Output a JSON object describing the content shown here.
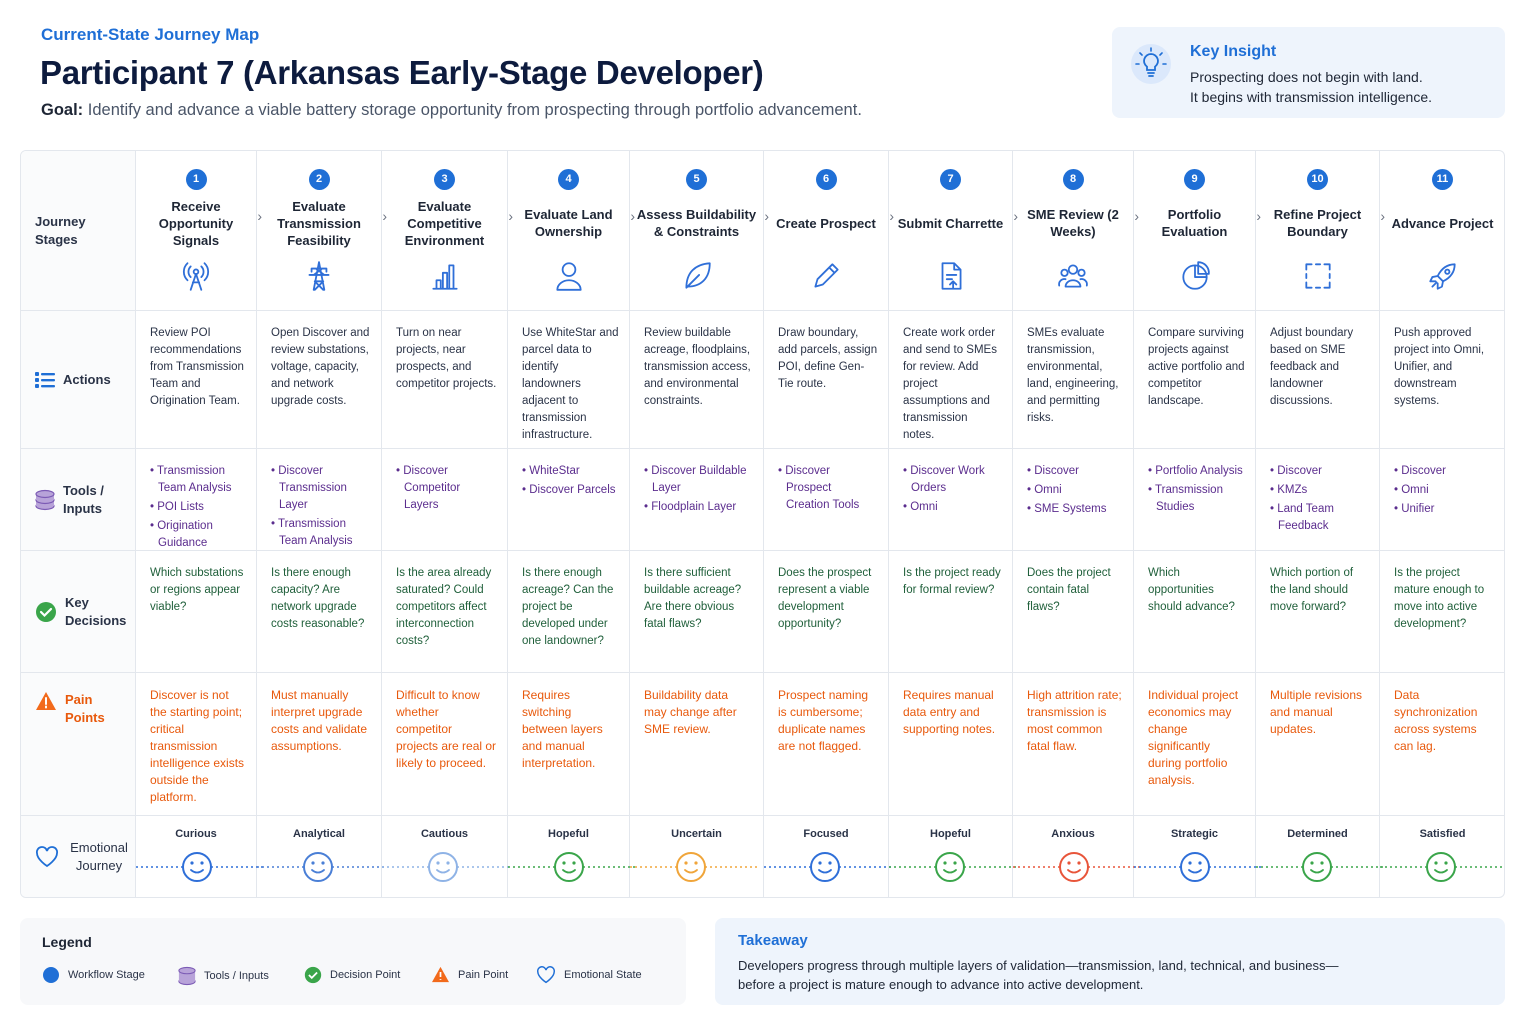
{
  "header": {
    "eyebrow": "Current-State Journey Map",
    "title": "Participant 7 (Arkansas Early-Stage Developer)",
    "goal_label": "Goal:",
    "goal": "Identify and advance a viable battery storage opportunity from prospecting through portfolio advancement."
  },
  "insight": {
    "title": "Key Insight",
    "lines": [
      "Prospecting does not begin with land.",
      "It begins with transmission intelligence."
    ]
  },
  "row_labels": {
    "stages": "Journey Stages",
    "actions": "Actions",
    "tools": "Tools / Inputs",
    "decisions": "Key Decisions",
    "pains": "Pain Points",
    "emotions": "Emotional Journey"
  },
  "stages": [
    {
      "number": 1,
      "name": "Receive Opportunity Signals",
      "action": "Review POI recommendations from Transmission Team and Origination Team.",
      "tools": [
        "Transmission Team Analysis",
        "POI Lists",
        "Origination Guidance"
      ],
      "decision": "Which substations or regions appear viable?",
      "pain": "Discover is not the starting point; critical transmission intelligence exists outside the platform.",
      "emotion": "Curious",
      "color": "#2f6fd8"
    },
    {
      "number": 2,
      "name": "Evaluate Transmission Feasibility",
      "action": "Open Discover and review substations, voltage, capacity, and network upgrade costs.",
      "tools": [
        "Discover Transmission Layer",
        "Transmission Team Analysis"
      ],
      "decision": "Is there enough capacity? Are network upgrade costs reasonable?",
      "pain": "Must manually interpret upgrade costs and validate assumptions.",
      "emotion": "Analytical",
      "color": "#4a7fd6"
    },
    {
      "number": 3,
      "name": "Evaluate Competitive Environment",
      "action": "Turn on near projects, near prospects, and competitor projects.",
      "tools": [
        "Discover Competitor Layers"
      ],
      "decision": "Is the area already saturated? Could competitors affect interconnection costs?",
      "pain": "Difficult to know whether competitor projects are real or likely to proceed.",
      "emotion": "Cautious",
      "color": "#8fb3e6"
    },
    {
      "number": 4,
      "name": "Evaluate Land Ownership",
      "action": "Use WhiteStar and parcel data to identify landowners adjacent to transmission infrastructure.",
      "tools": [
        "WhiteStar",
        "Discover Parcels"
      ],
      "decision": "Is there enough acreage? Can the project be developed under one landowner?",
      "pain": "Requires switching between layers and manual interpretation.",
      "emotion": "Hopeful",
      "color": "#3aa54a"
    },
    {
      "number": 5,
      "name": "Assess Buildability & Constraints",
      "action": "Review buildable acreage, floodplains, transmission access, and environmental constraints.",
      "tools": [
        "Discover Buildable Layer",
        "Floodplain Layer"
      ],
      "decision": "Is there sufficient buildable acreage? Are there obvious fatal flaws?",
      "pain": "Buildability data may change after SME review.",
      "emotion": "Uncertain",
      "color": "#f0a53a"
    },
    {
      "number": 6,
      "name": "Create Prospect",
      "action": "Draw boundary, add parcels, assign POI, define Gen-Tie route.",
      "tools": [
        "Discover Prospect Creation Tools"
      ],
      "decision": "Does the prospect represent a viable development opportunity?",
      "pain": "Prospect naming is cumbersome; duplicate names are not flagged.",
      "emotion": "Focused",
      "color": "#2f6fd8"
    },
    {
      "number": 7,
      "name": "Submit Charrette",
      "action": "Create work order and send to SMEs for review. Add project assumptions and transmission notes.",
      "tools": [
        "Discover Work Orders",
        "Omni"
      ],
      "decision": "Is the project ready for formal review?",
      "pain": "Requires manual data entry and supporting notes.",
      "emotion": "Hopeful",
      "color": "#3aa54a"
    },
    {
      "number": 8,
      "name": "SME Review (2 Weeks)",
      "action": "SMEs evaluate transmission, environmental, land, engineering, and permitting risks.",
      "tools": [
        "Discover",
        "Omni",
        "SME Systems"
      ],
      "decision": "Does the project contain fatal flaws?",
      "pain": "High attrition rate; transmission is most common fatal flaw.",
      "emotion": "Anxious",
      "color": "#e8553a"
    },
    {
      "number": 9,
      "name": "Portfolio Evaluation",
      "action": "Compare surviving projects against active portfolio and competitor landscape.",
      "tools": [
        "Portfolio Analysis",
        "Transmission Studies"
      ],
      "decision": "Which opportunities should advance?",
      "pain": "Individual project economics may change significantly during portfolio analysis.",
      "emotion": "Strategic",
      "color": "#2f6fd8"
    },
    {
      "number": 10,
      "name": "Refine Project Boundary",
      "action": "Adjust boundary based on SME feedback and landowner discussions.",
      "tools": [
        "Discover",
        "KMZs",
        "Land Team Feedback"
      ],
      "decision": "Which portion of the land should move forward?",
      "pain": "Multiple revisions and manual updates.",
      "emotion": "Determined",
      "color": "#3aa54a"
    },
    {
      "number": 11,
      "name": "Advance Project",
      "action": "Push approved project into Omni, Unifier, and downstream systems.",
      "tools": [
        "Discover",
        "Omni",
        "Unifier"
      ],
      "decision": "Is the project mature enough to move into active development?",
      "pain": "Data synchronization across systems can lag.",
      "emotion": "Satisfied",
      "color": "#3aa54a"
    }
  ],
  "legend": {
    "title": "Legend",
    "items": [
      "Workflow Stage",
      "Tools / Inputs",
      "Decision Point",
      "Pain Point",
      "Emotional State"
    ]
  },
  "takeaway": {
    "title": "Takeaway",
    "text": "Developers progress through multiple layers of validation—transmission, land, technical, and business—before a project is mature enough to advance into active development."
  }
}
